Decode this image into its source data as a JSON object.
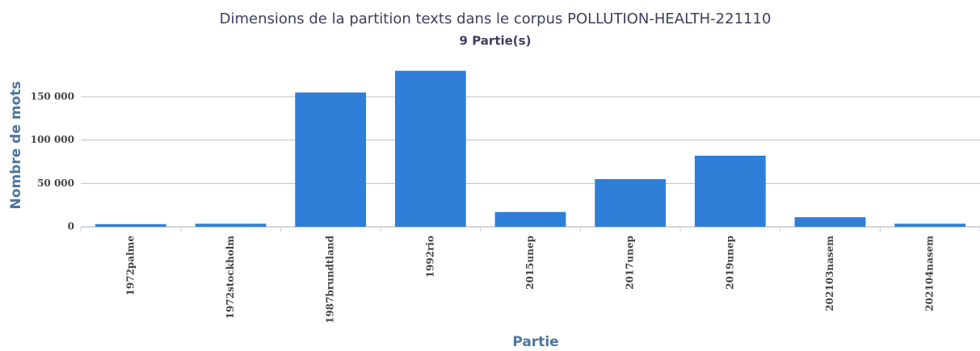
{
  "chart_data": {
    "type": "bar",
    "title": "Dimensions de la partition texts dans le corpus POLLUTION-HEALTH-221110",
    "subtitle": "9 Partie(s)",
    "x_label": "Partie",
    "y_label": "Nombre de mots",
    "categories": [
      "1972palme",
      "1972stockholm",
      "1987brundtland",
      "1992rio",
      "2015unep",
      "2017unep",
      "2019unep",
      "202103nasem",
      "202104nasem"
    ],
    "values": [
      3000,
      3500,
      155000,
      180000,
      17000,
      55000,
      82000,
      11000,
      3500
    ],
    "color": "#2f7ed8",
    "ylim": [
      0,
      190000
    ],
    "yticks": [
      0,
      {
        "value": 50000,
        "label": "50 000"
      },
      {
        "value": 100000,
        "label": "100 000"
      },
      {
        "value": 150000,
        "label": "150 000"
      }
    ],
    "grid": true
  }
}
